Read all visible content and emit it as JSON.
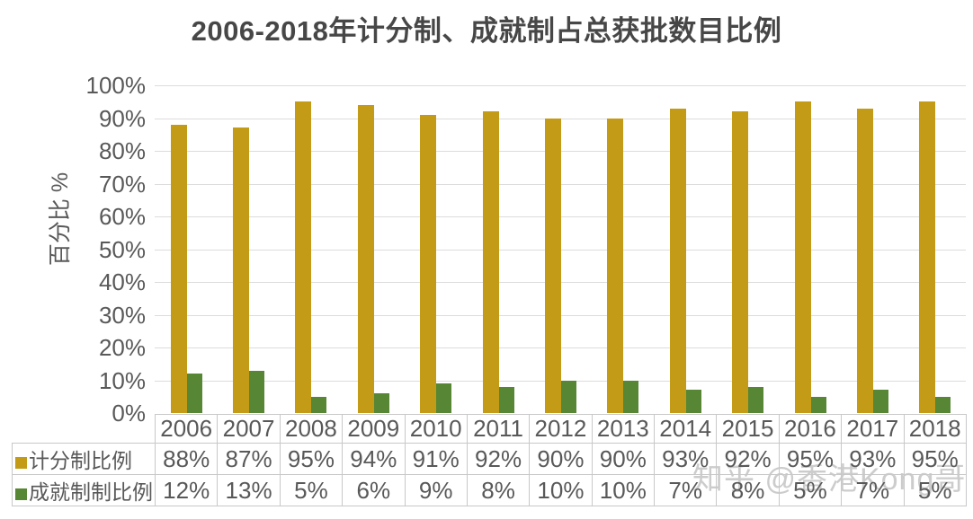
{
  "chart_data": {
    "type": "bar",
    "title": "2006-2018年计分制、成就制占总获批数目比例",
    "xlabel": "",
    "ylabel": "百分比 %",
    "categories": [
      "2006",
      "2007",
      "2008",
      "2009",
      "2010",
      "2011",
      "2012",
      "2013",
      "2014",
      "2015",
      "2016",
      "2017",
      "2018"
    ],
    "series": [
      {
        "name": "计分制比例",
        "color": "#C39B16",
        "values": [
          88,
          87,
          95,
          94,
          91,
          92,
          90,
          90,
          93,
          92,
          95,
          93,
          95
        ]
      },
      {
        "name": "成就制制比例",
        "color": "#578635",
        "values": [
          12,
          13,
          5,
          6,
          9,
          8,
          10,
          10,
          7,
          8,
          5,
          7,
          5
        ]
      }
    ],
    "ylim": [
      0,
      100
    ],
    "ytick_labels": [
      "0%",
      "10%",
      "20%",
      "30%",
      "40%",
      "50%",
      "60%",
      "70%",
      "80%",
      "90%",
      "100%"
    ],
    "grid": "horizontal-only",
    "legend_position": "table-rows-left",
    "value_suffix": "%"
  },
  "colors": {
    "series1": "#C39B16",
    "series2": "#578635",
    "text": "#595959",
    "title_text": "#474747",
    "gridline": "#DCDCDC",
    "table_border": "#C8C8C8"
  },
  "watermark": {
    "text": "知乎 @香港Kong哥"
  }
}
